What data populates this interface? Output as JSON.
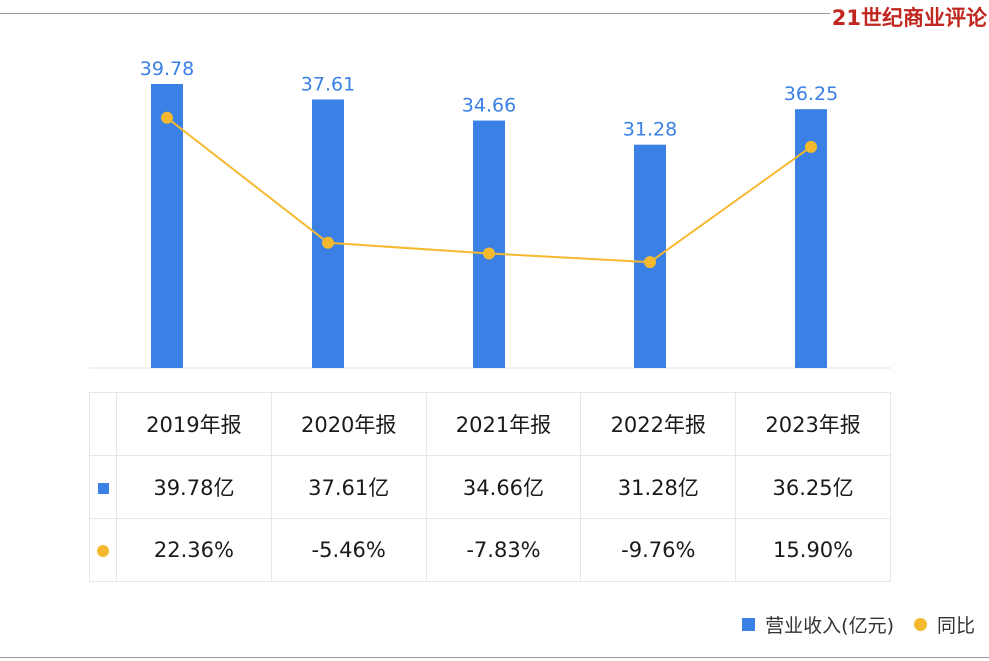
{
  "brand": {
    "logo_text": "21世纪商业评论"
  },
  "chart_data": {
    "type": "bar",
    "title": "",
    "xlabel": "",
    "ylabel": "",
    "categories": [
      "2019年报",
      "2020年报",
      "2021年报",
      "2022年报",
      "2023年报"
    ],
    "series": [
      {
        "name": "营业收入(亿元)",
        "type": "bar",
        "values": [
          39.78,
          37.61,
          34.66,
          31.28,
          36.25
        ],
        "value_labels": [
          "39.78",
          "37.61",
          "34.66",
          "31.28",
          "36.25"
        ],
        "color": "#3a80e5"
      },
      {
        "name": "同比",
        "type": "line",
        "values": [
          22.36,
          -5.46,
          -7.83,
          -9.76,
          15.9
        ],
        "color": "#f5b92f"
      }
    ],
    "bar_ylim": [
      0,
      39.78
    ],
    "line_ylim": [
      -40,
      33
    ],
    "legend_position": "bottom-right",
    "grid": false
  },
  "table": {
    "headers": [
      "2019年报",
      "2020年报",
      "2021年报",
      "2022年报",
      "2023年报"
    ],
    "revenue_row": [
      "39.78亿",
      "37.61亿",
      "34.66亿",
      "31.28亿",
      "36.25亿"
    ],
    "growth_row": [
      "22.36%",
      "-5.46%",
      "-7.83%",
      "-9.76%",
      "15.90%"
    ]
  },
  "legend": {
    "revenue": "营业收入(亿元)",
    "growth": "同比"
  },
  "colors": {
    "bar": "#3a80e5",
    "line": "#f5b92f",
    "positive": "#e0403a",
    "negative": "#26a46a"
  }
}
